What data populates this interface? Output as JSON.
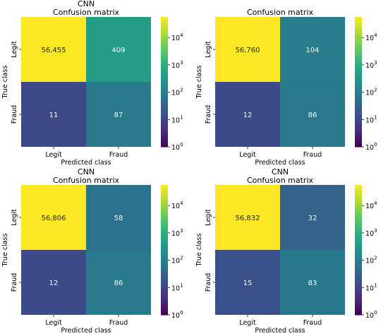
{
  "chart_data": [
    {
      "type": "heatmap",
      "title": "CNN",
      "subtitle": "Confusion matrix",
      "xlabel": "Predicted class",
      "ylabel": "True class",
      "x_categories": [
        "Legit",
        "Fraud"
      ],
      "y_categories": [
        "Legit",
        "Fraud"
      ],
      "values": [
        [
          56455,
          409
        ],
        [
          11,
          87
        ]
      ],
      "cell_labels": [
        [
          "56,455",
          "409"
        ],
        [
          "11",
          "87"
        ]
      ],
      "colorbar": {
        "scale": "log",
        "range": [
          1,
          56455
        ],
        "ticks": [
          1,
          10,
          100,
          1000,
          10000
        ],
        "tick_labels": [
          "10",
          "10",
          "10",
          "10",
          "10"
        ],
        "tick_exponents": [
          "0",
          "1",
          "2",
          "3",
          "4"
        ],
        "colormap": "viridis"
      }
    },
    {
      "type": "heatmap",
      "title": "",
      "subtitle": "Confusion matrix",
      "xlabel": "Predicted class",
      "ylabel": "True class",
      "x_categories": [
        "Legit",
        "Fraud"
      ],
      "y_categories": [
        "Legit",
        "Fraud"
      ],
      "values": [
        [
          56760,
          104
        ],
        [
          12,
          86
        ]
      ],
      "cell_labels": [
        [
          "56,760",
          "104"
        ],
        [
          "12",
          "86"
        ]
      ],
      "colorbar": {
        "scale": "log",
        "range": [
          1,
          56760
        ],
        "ticks": [
          1,
          10,
          100,
          1000,
          10000
        ],
        "tick_labels": [
          "10",
          "10",
          "10",
          "10",
          "10"
        ],
        "tick_exponents": [
          "0",
          "1",
          "2",
          "3",
          "4"
        ],
        "colormap": "viridis"
      }
    },
    {
      "type": "heatmap",
      "title": "CNN",
      "subtitle": "Confusion matrix",
      "xlabel": "Predicted class",
      "ylabel": "True class",
      "x_categories": [
        "Legit",
        "Fraud"
      ],
      "y_categories": [
        "Legit",
        "Fraud"
      ],
      "values": [
        [
          56806,
          58
        ],
        [
          12,
          86
        ]
      ],
      "cell_labels": [
        [
          "56,806",
          "58"
        ],
        [
          "12",
          "86"
        ]
      ],
      "colorbar": {
        "scale": "log",
        "range": [
          1,
          56806
        ],
        "ticks": [
          1,
          10,
          100,
          1000,
          10000
        ],
        "tick_labels": [
          "10",
          "10",
          "10",
          "10",
          "10"
        ],
        "tick_exponents": [
          "0",
          "1",
          "2",
          "3",
          "4"
        ],
        "colormap": "viridis"
      }
    },
    {
      "type": "heatmap",
      "title": "CNN",
      "subtitle": "Confusion matrix",
      "xlabel": "Predicted class",
      "ylabel": "True class",
      "x_categories": [
        "Legit",
        "Fraud"
      ],
      "y_categories": [
        "Legit",
        "Fraud"
      ],
      "values": [
        [
          56832,
          32
        ],
        [
          15,
          83
        ]
      ],
      "cell_labels": [
        [
          "56,832",
          "32"
        ],
        [
          "15",
          "83"
        ]
      ],
      "colorbar": {
        "scale": "log",
        "range": [
          1,
          56832
        ],
        "ticks": [
          1,
          10,
          100,
          1000,
          10000
        ],
        "tick_labels": [
          "10",
          "10",
          "10",
          "10",
          "10"
        ],
        "tick_exponents": [
          "0",
          "1",
          "2",
          "3",
          "4"
        ],
        "colormap": "viridis"
      }
    }
  ]
}
